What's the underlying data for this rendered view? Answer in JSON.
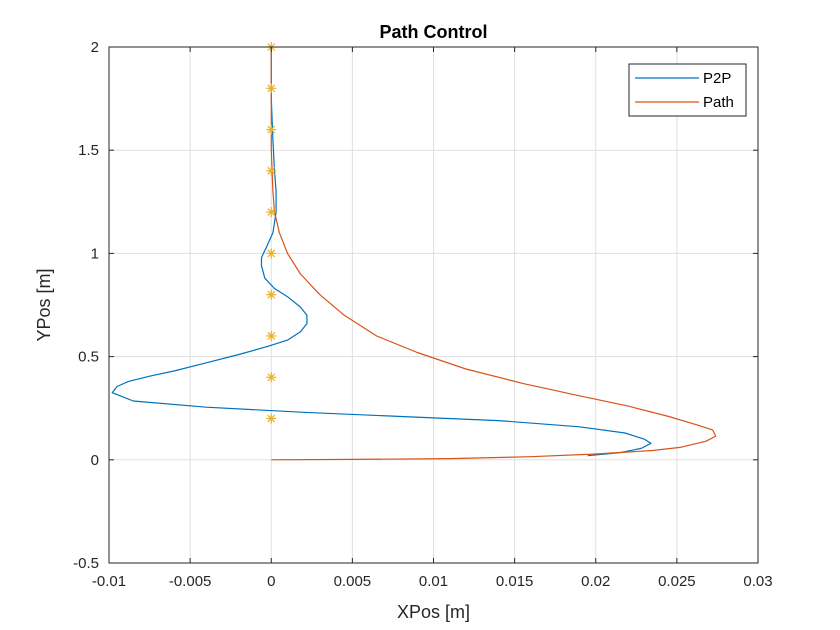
{
  "chart_data": {
    "type": "line",
    "title": "Path Control",
    "xlabel": "XPos [m]",
    "ylabel": "YPos [m]",
    "xlim": [
      -0.01,
      0.03
    ],
    "ylim": [
      -0.5,
      2
    ],
    "grid": true,
    "legend_position": "top-right",
    "xticks": [
      -0.01,
      -0.005,
      0,
      0.005,
      0.01,
      0.015,
      0.02,
      0.025,
      0.03
    ],
    "xtick_labels": [
      "-0.01",
      "-0.005",
      "0",
      "0.005",
      "0.01",
      "0.015",
      "0.02",
      "0.025",
      "0.03"
    ],
    "yticks": [
      -0.5,
      0,
      0.5,
      1,
      1.5,
      2
    ],
    "ytick_labels": [
      "-0.5",
      "0",
      "0.5",
      "1",
      "1.5",
      "2"
    ],
    "series": [
      {
        "name": "P2P",
        "color": "#0072BD",
        "points": [
          [
            0.0195,
            0.02
          ],
          [
            0.0215,
            0.035
          ],
          [
            0.0228,
            0.055
          ],
          [
            0.0234,
            0.08
          ],
          [
            0.023,
            0.1
          ],
          [
            0.0218,
            0.13
          ],
          [
            0.019,
            0.16
          ],
          [
            0.014,
            0.19
          ],
          [
            0.008,
            0.21
          ],
          [
            0.002,
            0.23
          ],
          [
            -0.004,
            0.255
          ],
          [
            -0.0085,
            0.285
          ],
          [
            -0.0098,
            0.325
          ],
          [
            -0.0095,
            0.355
          ],
          [
            -0.0088,
            0.38
          ],
          [
            -0.0075,
            0.405
          ],
          [
            -0.006,
            0.43
          ],
          [
            -0.004,
            0.47
          ],
          [
            -0.002,
            0.51
          ],
          [
            -0.0002,
            0.55
          ],
          [
            0.001,
            0.58
          ],
          [
            0.0018,
            0.62
          ],
          [
            0.0022,
            0.66
          ],
          [
            0.0022,
            0.7
          ],
          [
            0.0018,
            0.74
          ],
          [
            0.001,
            0.79
          ],
          [
            0.0002,
            0.83
          ],
          [
            -0.0004,
            0.88
          ],
          [
            -0.0006,
            0.94
          ],
          [
            -0.0006,
            0.98
          ],
          [
            -0.0003,
            1.03
          ],
          [
            0.0001,
            1.1
          ],
          [
            0.0003,
            1.2
          ],
          [
            0.0003,
            1.3
          ],
          [
            0.0002,
            1.4
          ],
          [
            0.0001,
            1.55
          ],
          [
            0.0,
            1.75
          ],
          [
            0.0,
            2.0
          ]
        ]
      },
      {
        "name": "Path",
        "color": "#D95319",
        "points": [
          [
            0.0,
            0.0
          ],
          [
            0.005,
            0.002
          ],
          [
            0.011,
            0.006
          ],
          [
            0.016,
            0.015
          ],
          [
            0.02,
            0.028
          ],
          [
            0.0235,
            0.045
          ],
          [
            0.0252,
            0.06
          ],
          [
            0.026,
            0.075
          ],
          [
            0.0268,
            0.09
          ],
          [
            0.0274,
            0.115
          ],
          [
            0.0272,
            0.145
          ],
          [
            0.0262,
            0.17
          ],
          [
            0.0245,
            0.21
          ],
          [
            0.022,
            0.26
          ],
          [
            0.019,
            0.31
          ],
          [
            0.0155,
            0.37
          ],
          [
            0.012,
            0.44
          ],
          [
            0.009,
            0.52
          ],
          [
            0.0065,
            0.6
          ],
          [
            0.0045,
            0.7
          ],
          [
            0.003,
            0.8
          ],
          [
            0.0018,
            0.9
          ],
          [
            0.001,
            1.0
          ],
          [
            0.0005,
            1.1
          ],
          [
            0.0002,
            1.2
          ],
          [
            0.0001,
            1.3
          ],
          [
            0.0,
            1.5
          ],
          [
            0.0,
            2.0
          ]
        ]
      },
      {
        "name": "waypoints",
        "color": "#EDB120",
        "marker": "asterisk",
        "points": [
          [
            0,
            0.2
          ],
          [
            0,
            0.4
          ],
          [
            0,
            0.6
          ],
          [
            0,
            0.8
          ],
          [
            0,
            1.0
          ],
          [
            0,
            1.2
          ],
          [
            0,
            1.4
          ],
          [
            0,
            1.6
          ],
          [
            0,
            1.8
          ],
          [
            0,
            2.0
          ]
        ]
      }
    ],
    "legend": [
      "P2P",
      "Path"
    ]
  }
}
